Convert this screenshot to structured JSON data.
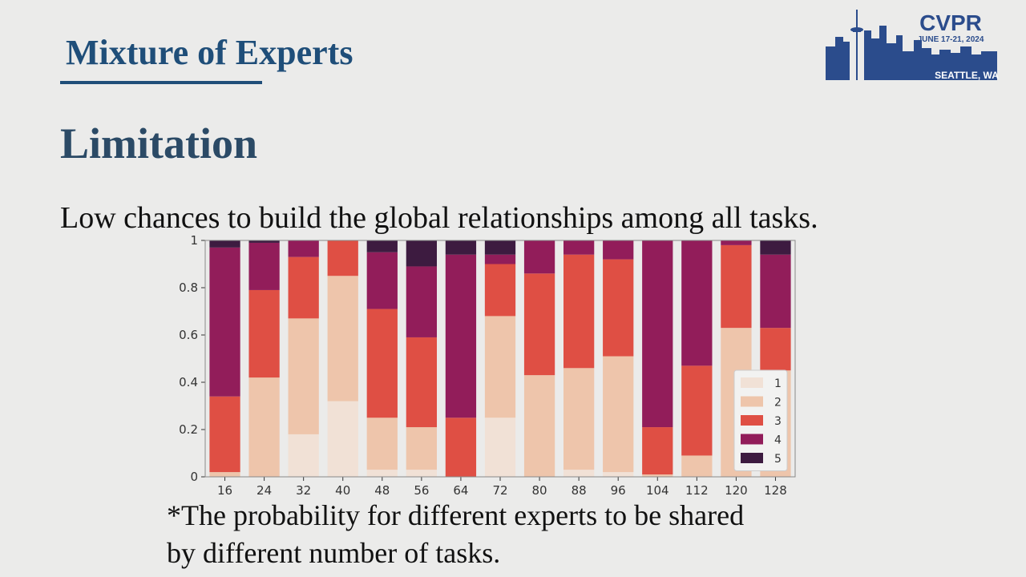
{
  "slide": {
    "section_title": "Mixture of Experts",
    "heading": "Limitation",
    "body": "Low chances to build the global relationships among all tasks.",
    "caption_line1": "*The probability for different experts to be shared",
    "caption_line2": "by different number of tasks."
  },
  "logo": {
    "name": "CVPR",
    "dates": "JUNE 17-21, 2024",
    "location": "SEATTLE, WA",
    "color": "#2b4c8c"
  },
  "chart_data": {
    "type": "bar",
    "stacked": true,
    "categories": [
      "16",
      "24",
      "32",
      "40",
      "48",
      "56",
      "64",
      "72",
      "80",
      "88",
      "96",
      "104",
      "112",
      "120",
      "128"
    ],
    "ylim": [
      0,
      1
    ],
    "yticks": [
      "0",
      "0.2",
      "0.4",
      "0.6",
      "0.8",
      "1"
    ],
    "legend_position": "lower-right",
    "series": [
      {
        "name": "1",
        "color": "#f1e1d6",
        "values": [
          0.0,
          0.0,
          0.18,
          0.32,
          0.03,
          0.03,
          0.0,
          0.25,
          0.0,
          0.03,
          0.02,
          0.0,
          0.0,
          0.0,
          0.0
        ]
      },
      {
        "name": "2",
        "color": "#eec5ab",
        "values": [
          0.02,
          0.42,
          0.49,
          0.53,
          0.22,
          0.18,
          0.0,
          0.43,
          0.43,
          0.43,
          0.49,
          0.01,
          0.09,
          0.63,
          0.45
        ]
      },
      {
        "name": "3",
        "color": "#df4f44",
        "values": [
          0.32,
          0.37,
          0.26,
          0.15,
          0.46,
          0.38,
          0.25,
          0.22,
          0.43,
          0.48,
          0.41,
          0.2,
          0.38,
          0.35,
          0.18
        ]
      },
      {
        "name": "4",
        "color": "#921d5a",
        "values": [
          0.63,
          0.2,
          0.07,
          0.0,
          0.24,
          0.3,
          0.69,
          0.04,
          0.14,
          0.06,
          0.08,
          0.79,
          0.53,
          0.02,
          0.31
        ]
      },
      {
        "name": "5",
        "color": "#3d1b40",
        "values": [
          0.03,
          0.01,
          0.0,
          0.0,
          0.05,
          0.11,
          0.06,
          0.06,
          0.0,
          0.0,
          0.0,
          0.0,
          0.0,
          0.0,
          0.06
        ]
      }
    ]
  }
}
